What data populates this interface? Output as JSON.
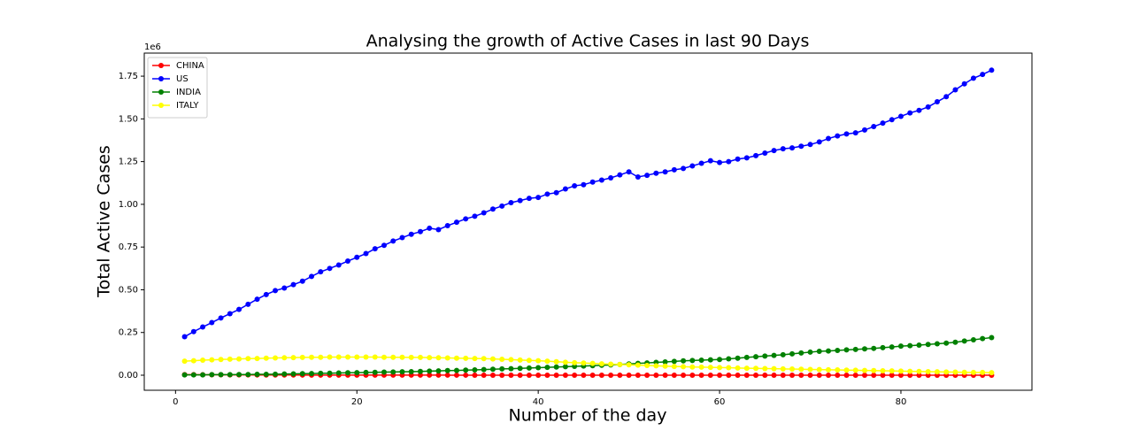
{
  "chart_data": {
    "type": "line",
    "title": "Analysing the growth of Active Cases in last 90 Days",
    "x_label": "Number of the day",
    "y_label": "Total Active Cases",
    "y_offset_label": "1e6",
    "x": [
      1,
      2,
      3,
      4,
      5,
      6,
      7,
      8,
      9,
      10,
      11,
      12,
      13,
      14,
      15,
      16,
      17,
      18,
      19,
      20,
      21,
      22,
      23,
      24,
      25,
      26,
      27,
      28,
      29,
      30,
      31,
      32,
      33,
      34,
      35,
      36,
      37,
      38,
      39,
      40,
      41,
      42,
      43,
      44,
      45,
      46,
      47,
      48,
      49,
      50,
      51,
      52,
      53,
      54,
      55,
      56,
      57,
      58,
      59,
      60,
      61,
      62,
      63,
      64,
      65,
      66,
      67,
      68,
      69,
      70,
      71,
      72,
      73,
      74,
      75,
      76,
      77,
      78,
      79,
      80,
      81,
      82,
      83,
      84,
      85,
      86,
      87,
      88,
      89,
      90
    ],
    "xlim": [
      -3.45,
      94.45
    ],
    "xticks": [
      0,
      20,
      40,
      60,
      80
    ],
    "ylim": [
      -88000,
      1885000
    ],
    "yticks": [
      {
        "value": 0,
        "label": "0.00"
      },
      {
        "value": 250000,
        "label": "0.25"
      },
      {
        "value": 500000,
        "label": "0.50"
      },
      {
        "value": 750000,
        "label": "0.75"
      },
      {
        "value": 1000000,
        "label": "1.00"
      },
      {
        "value": 1250000,
        "label": "1.25"
      },
      {
        "value": 1500000,
        "label": "1.50"
      },
      {
        "value": 1750000,
        "label": "1.75"
      }
    ],
    "legend": "upper left",
    "series": [
      {
        "name": "CHINA",
        "color": "#ff0000",
        "values": [
          3200,
          3000,
          2800,
          2600,
          2400,
          2200,
          2000,
          1800,
          1650,
          1500,
          1350,
          1200,
          1100,
          1000,
          900,
          800,
          700,
          650,
          600,
          550,
          500,
          480,
          460,
          440,
          420,
          400,
          390,
          380,
          370,
          360,
          350,
          340,
          330,
          320,
          310,
          300,
          300,
          300,
          300,
          300,
          300,
          300,
          300,
          300,
          300,
          300,
          300,
          300,
          300,
          300,
          300,
          300,
          300,
          300,
          300,
          300,
          300,
          300,
          300,
          300,
          300,
          300,
          300,
          300,
          300,
          300,
          300,
          300,
          300,
          300,
          300,
          300,
          300,
          300,
          300,
          300,
          300,
          300,
          300,
          300,
          300,
          300,
          300,
          300,
          300,
          300,
          300,
          300,
          300,
          300
        ]
      },
      {
        "name": "US",
        "color": "#0000ff",
        "values": [
          225000,
          255000,
          282000,
          308000,
          335000,
          360000,
          385000,
          415000,
          445000,
          472000,
          495000,
          510000,
          530000,
          550000,
          578000,
          605000,
          625000,
          645000,
          668000,
          690000,
          712000,
          740000,
          760000,
          785000,
          805000,
          825000,
          840000,
          860000,
          852000,
          875000,
          895000,
          915000,
          930000,
          950000,
          972000,
          990000,
          1010000,
          1022000,
          1035000,
          1040000,
          1060000,
          1068000,
          1090000,
          1108000,
          1115000,
          1130000,
          1142000,
          1155000,
          1172000,
          1190000,
          1160000,
          1170000,
          1182000,
          1190000,
          1202000,
          1210000,
          1225000,
          1240000,
          1255000,
          1245000,
          1250000,
          1265000,
          1272000,
          1285000,
          1300000,
          1315000,
          1325000,
          1330000,
          1340000,
          1350000,
          1365000,
          1385000,
          1400000,
          1412000,
          1418000,
          1435000,
          1455000,
          1475000,
          1495000,
          1515000,
          1535000,
          1550000,
          1570000,
          1600000,
          1630000,
          1670000,
          1705000,
          1738000,
          1760000,
          1785000
        ]
      },
      {
        "name": "INDIA",
        "color": "#008000",
        "values": [
          2000,
          2000,
          2000,
          3000,
          3000,
          3000,
          4000,
          4000,
          5000,
          5000,
          6000,
          7000,
          8000,
          9000,
          10000,
          11000,
          12000,
          13000,
          14000,
          15000,
          16000,
          17000,
          18000,
          19000,
          20000,
          21000,
          22000,
          24000,
          25000,
          27000,
          28000,
          30000,
          31000,
          33000,
          35000,
          37000,
          38000,
          40000,
          42000,
          44000,
          46000,
          48000,
          50000,
          52000,
          54000,
          56000,
          58000,
          60000,
          63000,
          66000,
          69000,
          72000,
          75000,
          78000,
          81000,
          84000,
          86000,
          88000,
          90000,
          92000,
          96000,
          100000,
          104000,
          108000,
          112000,
          116000,
          120000,
          125000,
          130000,
          135000,
          140000,
          142000,
          145000,
          148000,
          151000,
          154000,
          157000,
          161000,
          165000,
          170000,
          173000,
          176000,
          180000,
          184000,
          188000,
          193000,
          200000,
          207000,
          214000,
          220000
        ]
      },
      {
        "name": "ITALY",
        "color": "#ffff00",
        "values": [
          82000,
          85000,
          88000,
          90000,
          92000,
          94000,
          95000,
          97000,
          98000,
          100000,
          101000,
          102000,
          103000,
          104000,
          105000,
          105000,
          106000,
          106000,
          106000,
          106000,
          106000,
          106000,
          105000,
          105000,
          105000,
          104000,
          104000,
          103000,
          102000,
          101000,
          100000,
          99000,
          98000,
          97000,
          95000,
          93000,
          91000,
          89000,
          87000,
          85000,
          82000,
          79000,
          76000,
          73000,
          71000,
          69000,
          67000,
          65000,
          63000,
          61000,
          59000,
          57000,
          55000,
          53000,
          51000,
          50000,
          48000,
          47000,
          46000,
          45000,
          44000,
          42000,
          41000,
          40000,
          39000,
          38000,
          37000,
          36000,
          35000,
          34000,
          33000,
          32000,
          31000,
          30000,
          29000,
          28000,
          27000,
          26000,
          25000,
          24000,
          23000,
          22000,
          21000,
          20000,
          19000,
          18000,
          17000,
          16000,
          16000,
          15000
        ]
      }
    ]
  }
}
